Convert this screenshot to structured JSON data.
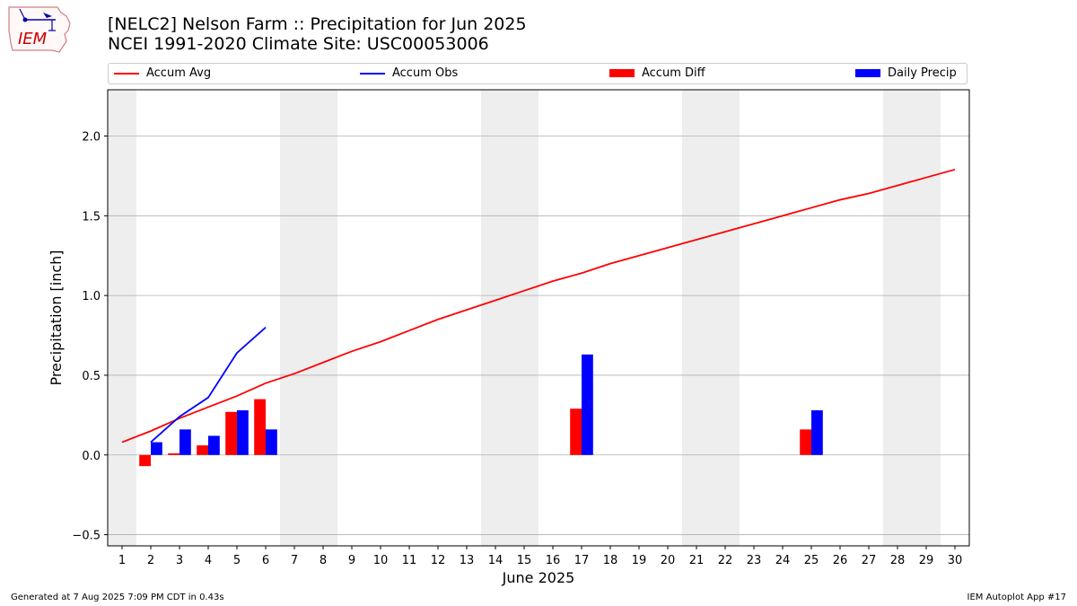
{
  "header": {
    "title_line1": "[NELC2] Nelson Farm :: Precipitation for Jun 2025",
    "title_line2": "NCEI 1991-2020 Climate Site: USC00053006"
  },
  "logo": {
    "text": "IEM",
    "icon": "iem-iowa-logo-icon",
    "color": "#cc0000"
  },
  "footer": {
    "left": "Generated at 7 Aug 2025 7:09 PM CDT in 0.43s",
    "right": "IEM Autoplot App #17"
  },
  "colors": {
    "avg": "#ff0000",
    "obs": "#0000ff",
    "diff": "#ff0000",
    "daily": "#0000ff",
    "weekend": "#eeeeee",
    "grid": "#b0b0b0"
  },
  "chart_data": {
    "type": "bar",
    "xlabel": "June 2025",
    "ylabel": "Precipitation [inch]",
    "xlim": [
      0.5,
      30.5
    ],
    "ylim": [
      -0.57,
      2.29
    ],
    "yticks": [
      -0.5,
      0.0,
      0.5,
      1.0,
      1.5,
      2.0
    ],
    "ytick_labels": [
      "−0.5",
      "0.0",
      "0.5",
      "1.0",
      "1.5",
      "2.0"
    ],
    "x": [
      1,
      2,
      3,
      4,
      5,
      6,
      7,
      8,
      9,
      10,
      11,
      12,
      13,
      14,
      15,
      16,
      17,
      18,
      19,
      20,
      21,
      22,
      23,
      24,
      25,
      26,
      27,
      28,
      29,
      30
    ],
    "shaded_days": [
      [
        1,
        1
      ],
      [
        7,
        8
      ],
      [
        14,
        15
      ],
      [
        21,
        22
      ],
      [
        28,
        29
      ]
    ],
    "legend": [
      "Accum Avg",
      "Accum Obs",
      "Accum Diff",
      "Daily Precip"
    ],
    "series": [
      {
        "name": "Accum Avg",
        "kind": "line",
        "color": "#ff0000",
        "x": [
          1,
          2,
          3,
          4,
          5,
          6,
          7,
          8,
          9,
          10,
          11,
          12,
          13,
          14,
          15,
          16,
          17,
          18,
          19,
          20,
          21,
          22,
          23,
          24,
          25,
          26,
          27,
          28,
          29,
          30
        ],
        "values": [
          0.08,
          0.15,
          0.23,
          0.3,
          0.37,
          0.45,
          0.51,
          0.58,
          0.65,
          0.71,
          0.78,
          0.85,
          0.91,
          0.97,
          1.03,
          1.09,
          1.14,
          1.2,
          1.25,
          1.3,
          1.35,
          1.4,
          1.45,
          1.5,
          1.55,
          1.6,
          1.64,
          1.69,
          1.74,
          1.79
        ]
      },
      {
        "name": "Accum Obs",
        "kind": "line",
        "color": "#0000ff",
        "x": [
          2,
          3,
          4,
          5,
          6
        ],
        "values": [
          0.08,
          0.24,
          0.36,
          0.64,
          0.8
        ]
      },
      {
        "name": "Accum Diff",
        "kind": "bar",
        "color": "#ff0000",
        "offset": -0.2,
        "x": [
          2,
          3,
          4,
          5,
          6,
          17,
          25
        ],
        "values": [
          -0.07,
          0.01,
          0.06,
          0.27,
          0.35,
          0.29,
          0.16
        ]
      },
      {
        "name": "Daily Precip",
        "kind": "bar",
        "color": "#0000ff",
        "offset": 0.2,
        "x": [
          2,
          3,
          4,
          5,
          6,
          17,
          25
        ],
        "values": [
          0.08,
          0.16,
          0.12,
          0.28,
          0.16,
          0.63,
          0.28
        ]
      }
    ]
  }
}
